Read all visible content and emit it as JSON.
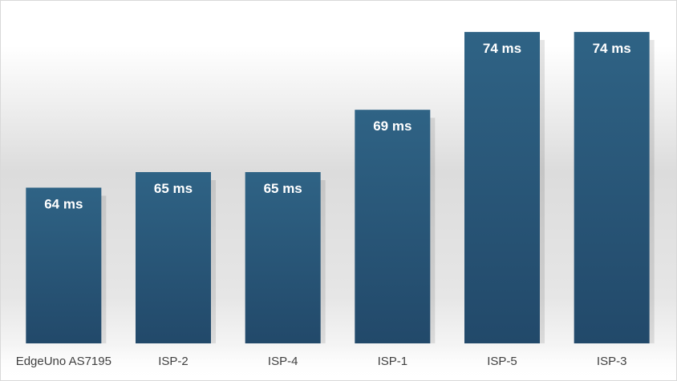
{
  "chart_data": {
    "type": "bar",
    "title": "",
    "xlabel": "",
    "ylabel": "",
    "categories": [
      "EdgeUno AS7195",
      "ISP-2",
      "ISP-4",
      "ISP-1",
      "ISP-5",
      "ISP-3"
    ],
    "values": [
      64,
      65,
      65,
      69,
      74,
      74
    ],
    "data_labels": [
      "64 ms",
      "65 ms",
      "65 ms",
      "69 ms",
      "74 ms",
      "74 ms"
    ],
    "unit": "ms",
    "ylim": [
      54,
      76
    ],
    "grid": false,
    "legend": "none",
    "colors": {
      "bar_top": "#2f6385",
      "bar_bottom": "#22496a",
      "label_text": "#ffffff",
      "tick_text": "#404040",
      "background_top": "#ffffff",
      "background_mid": "#dedede"
    }
  }
}
